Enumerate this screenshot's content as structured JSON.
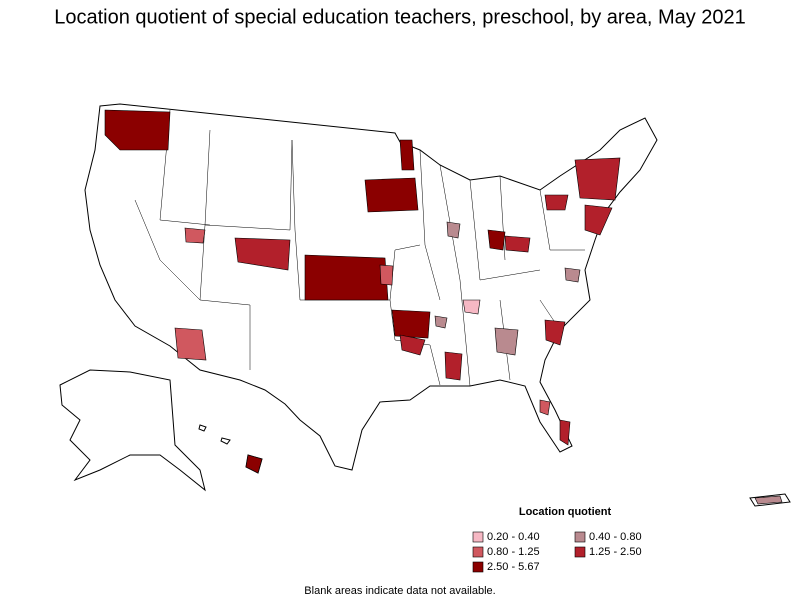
{
  "title": "Location quotient of special education teachers, preschool, by area, May 2021",
  "legend": {
    "title": "Location quotient",
    "items": [
      {
        "label": "0.20 - 0.40",
        "color": "#f6b8c4"
      },
      {
        "label": "0.40 - 0.80",
        "color": "#b98a8f"
      },
      {
        "label": "0.80 - 1.25",
        "color": "#d0585f"
      },
      {
        "label": "1.25 - 2.50",
        "color": "#b2202b"
      },
      {
        "label": "2.50 - 5.67",
        "color": "#8b0000"
      }
    ]
  },
  "note": "Blank areas indicate data not available."
}
